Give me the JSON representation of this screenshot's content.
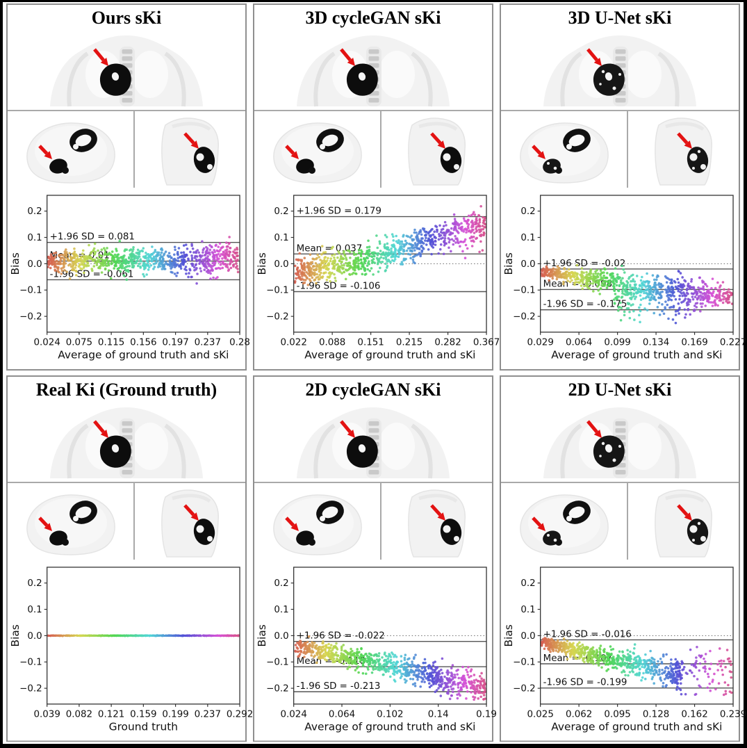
{
  "figure": {
    "panels": [
      {
        "title": "Ours sKi"
      },
      {
        "title": "3D cycleGAN sKi"
      },
      {
        "title": "3D U-Net sKi"
      },
      {
        "title": "Real Ki (Ground truth)"
      },
      {
        "title": "2D cycleGAN sKi"
      },
      {
        "title": "2D U-Net sKi"
      }
    ],
    "style": {
      "arrow_color": "#e31212",
      "panel_border_color": "#8f8f8f",
      "outer_frame_color": "#000000",
      "divider_color": "#a9a9a9",
      "annotation_line_color": "#555555",
      "scatter_colormap": "rainbow-by-x (salmon-orange-olive-green-teal-cyan-blue-purple-magenta-pink)"
    }
  },
  "chart_data": [
    {
      "type": "scatter",
      "title": "Ours sKi",
      "xlabel": "Average of ground truth and sKi",
      "ylabel": "Bias",
      "xticklabels": [
        "0.024",
        "0.075",
        "0.115",
        "0.156",
        "0.197",
        "0.237",
        "0.28"
      ],
      "yticks": [
        0.2,
        0.1,
        0.0,
        -0.1,
        -0.2
      ],
      "ylim": [
        -0.26,
        0.26
      ],
      "zero_line_dotted": true,
      "lines": [
        {
          "name": "upper-loa",
          "y": 0.081,
          "label": "+1.96 SD = 0.081"
        },
        {
          "name": "mean",
          "y": 0.01,
          "label": "Mean = 0.01"
        },
        {
          "name": "lower-loa",
          "y": -0.061,
          "label": "-1.96 SD = -0.061"
        }
      ],
      "scatter": {
        "clusters": [
          {
            "n": 850,
            "x_range": [
              0,
              1
            ],
            "trend": [
              [
                0,
                0.006
              ],
              [
                1,
                0.022
              ]
            ],
            "sd": [
              [
                0,
                0.022
              ],
              [
                0.6,
                0.026
              ],
              [
                1,
                0.032
              ]
            ],
            "clip": [
              -0.095,
              0.132
            ]
          }
        ]
      }
    },
    {
      "type": "scatter",
      "title": "3D cycleGAN sKi",
      "xlabel": "Average of ground truth and sKi",
      "ylabel": "Bias",
      "xticklabels": [
        "0.022",
        "0.088",
        "0.151",
        "0.215",
        "0.282",
        "0.367"
      ],
      "yticks": [
        0.2,
        0.1,
        0.0,
        -0.1,
        -0.2
      ],
      "ylim": [
        -0.26,
        0.26
      ],
      "zero_line_dotted": true,
      "lines": [
        {
          "name": "upper-loa",
          "y": 0.179,
          "label": "+1.96 SD = 0.179"
        },
        {
          "name": "mean",
          "y": 0.037,
          "label": "Mean = 0.037"
        },
        {
          "name": "lower-loa",
          "y": -0.106,
          "label": "-1.96 SD = -0.106"
        }
      ],
      "scatter": {
        "clusters": [
          {
            "n": 850,
            "x_range": [
              0,
              1
            ],
            "trend": [
              [
                0,
                -0.033
              ],
              [
                0.35,
                0.01
              ],
              [
                0.7,
                0.09
              ],
              [
                1,
                0.152
              ]
            ],
            "sd": [
              [
                0,
                0.024
              ],
              [
                1,
                0.034
              ]
            ],
            "clip": [
              -0.085,
              0.228
            ]
          }
        ]
      }
    },
    {
      "type": "scatter",
      "title": "3D U-Net sKi",
      "xlabel": "Average of ground truth and sKi",
      "ylabel": "Bias",
      "xticklabels": [
        "0.029",
        "0.064",
        "0.099",
        "0.134",
        "0.169",
        "0.227"
      ],
      "yticks": [
        0.2,
        0.1,
        0.0,
        -0.1,
        -0.2
      ],
      "ylim": [
        -0.26,
        0.26
      ],
      "zero_line_dotted": true,
      "lines": [
        {
          "name": "upper-loa",
          "y": -0.02,
          "label": "+1.96 SD = -0.02"
        },
        {
          "name": "mean",
          "y": -0.098,
          "label": "Mean = -0.098"
        },
        {
          "name": "lower-loa",
          "y": -0.175,
          "label": "-1.96 SD = -0.175"
        }
      ],
      "scatter": {
        "clusters": [
          {
            "n": 800,
            "x_range": [
              0,
              1
            ],
            "trend": [
              [
                0,
                -0.028
              ],
              [
                0.3,
                -0.065
              ],
              [
                0.6,
                -0.105
              ],
              [
                1,
                -0.122
              ]
            ],
            "sd": [
              [
                0,
                0.01
              ],
              [
                0.45,
                0.025
              ],
              [
                0.75,
                0.03
              ],
              [
                1,
                0.016
              ]
            ],
            "clip": [
              -0.232,
              -0.005
            ]
          },
          {
            "n": 55,
            "x_range": [
              0.38,
              0.82
            ],
            "trend": [
              [
                0,
                -0.16
              ],
              [
                1,
                -0.185
              ]
            ],
            "sd": [
              [
                0,
                0.028
              ],
              [
                1,
                0.028
              ]
            ],
            "clip": [
              -0.228,
              -0.11
            ]
          }
        ]
      }
    },
    {
      "type": "scatter",
      "title": "Real Ki (Ground truth)",
      "xlabel": "Ground truth",
      "ylabel": "Bias",
      "xticklabels": [
        "0.039",
        "0.082",
        "0.121",
        "0.159",
        "0.199",
        "0.237",
        "0.292"
      ],
      "yticks": [
        0.2,
        0.1,
        0.0,
        -0.1,
        -0.2
      ],
      "ylim": [
        -0.26,
        0.26
      ],
      "zero_line_dotted": false,
      "lines": [],
      "scatter": {
        "note": "identity comparison: zero bias everywhere",
        "clusters": [
          {
            "n": 900,
            "x_range": [
              0,
              1
            ],
            "trend": [
              [
                0,
                0
              ],
              [
                1,
                0
              ]
            ],
            "sd": [
              [
                0,
                0.0006
              ],
              [
                1,
                0.0006
              ]
            ],
            "clip": [
              -0.005,
              0.005
            ],
            "r": 1.5
          }
        ]
      }
    },
    {
      "type": "scatter",
      "title": "2D cycleGAN sKi",
      "xlabel": "Average of ground truth and sKi",
      "ylabel": "Bias",
      "xticklabels": [
        "0.024",
        "0.064",
        "0.102",
        "0.14",
        "0.19"
      ],
      "yticks": [
        0.2,
        0.1,
        0.0,
        -0.1,
        -0.2
      ],
      "ylim": [
        -0.26,
        0.26
      ],
      "zero_line_dotted": true,
      "lines": [
        {
          "name": "upper-loa",
          "y": -0.022,
          "label": "+1.96 SD = -0.022"
        },
        {
          "name": "mean",
          "y": -0.118,
          "label": "Mean = -0.118"
        },
        {
          "name": "lower-loa",
          "y": -0.213,
          "label": "-1.96 SD = -0.213"
        }
      ],
      "scatter": {
        "clusters": [
          {
            "n": 850,
            "x_range": [
              0,
              1
            ],
            "trend": [
              [
                0,
                -0.038
              ],
              [
                0.5,
                -0.115
              ],
              [
                1,
                -0.205
              ]
            ],
            "sd": [
              [
                0,
                0.016
              ],
              [
                0.5,
                0.024
              ],
              [
                1,
                0.028
              ]
            ],
            "clip": [
              -0.243,
              0.005
            ]
          }
        ]
      }
    },
    {
      "type": "scatter",
      "title": "2D U-Net sKi",
      "xlabel": "Average of ground truth and sKi",
      "ylabel": "Bias",
      "xticklabels": [
        "0.025",
        "0.062",
        "0.095",
        "0.128",
        "0.162",
        "0.239"
      ],
      "yticks": [
        0.2,
        0.1,
        0.0,
        -0.1,
        -0.2
      ],
      "ylim": [
        -0.26,
        0.26
      ],
      "zero_line_dotted": true,
      "lines": [
        {
          "name": "upper-loa",
          "y": -0.016,
          "label": "+1.96 SD = -0.016"
        },
        {
          "name": "mean",
          "y": -0.107,
          "label": "Mean = -0.107"
        },
        {
          "name": "lower-loa",
          "y": -0.199,
          "label": "-1.96 SD = -0.199"
        }
      ],
      "scatter": {
        "clusters": [
          {
            "n": 720,
            "x_range": [
              0,
              0.74
            ],
            "trend": [
              [
                0,
                -0.024
              ],
              [
                0.5,
                -0.09
              ],
              [
                1,
                -0.148
              ]
            ],
            "sd": [
              [
                0,
                0.011
              ],
              [
                0.6,
                0.02
              ],
              [
                1,
                0.026
              ]
            ],
            "clip": [
              -0.225,
              -0.005
            ]
          },
          {
            "n": 85,
            "x_range": [
              0.72,
              1
            ],
            "trend": [
              [
                0,
                -0.13
              ],
              [
                1,
                -0.125
              ]
            ],
            "sd": [
              [
                0,
                0.048
              ],
              [
                1,
                0.052
              ]
            ],
            "clip": [
              -0.225,
              -0.04
            ]
          }
        ]
      }
    }
  ]
}
